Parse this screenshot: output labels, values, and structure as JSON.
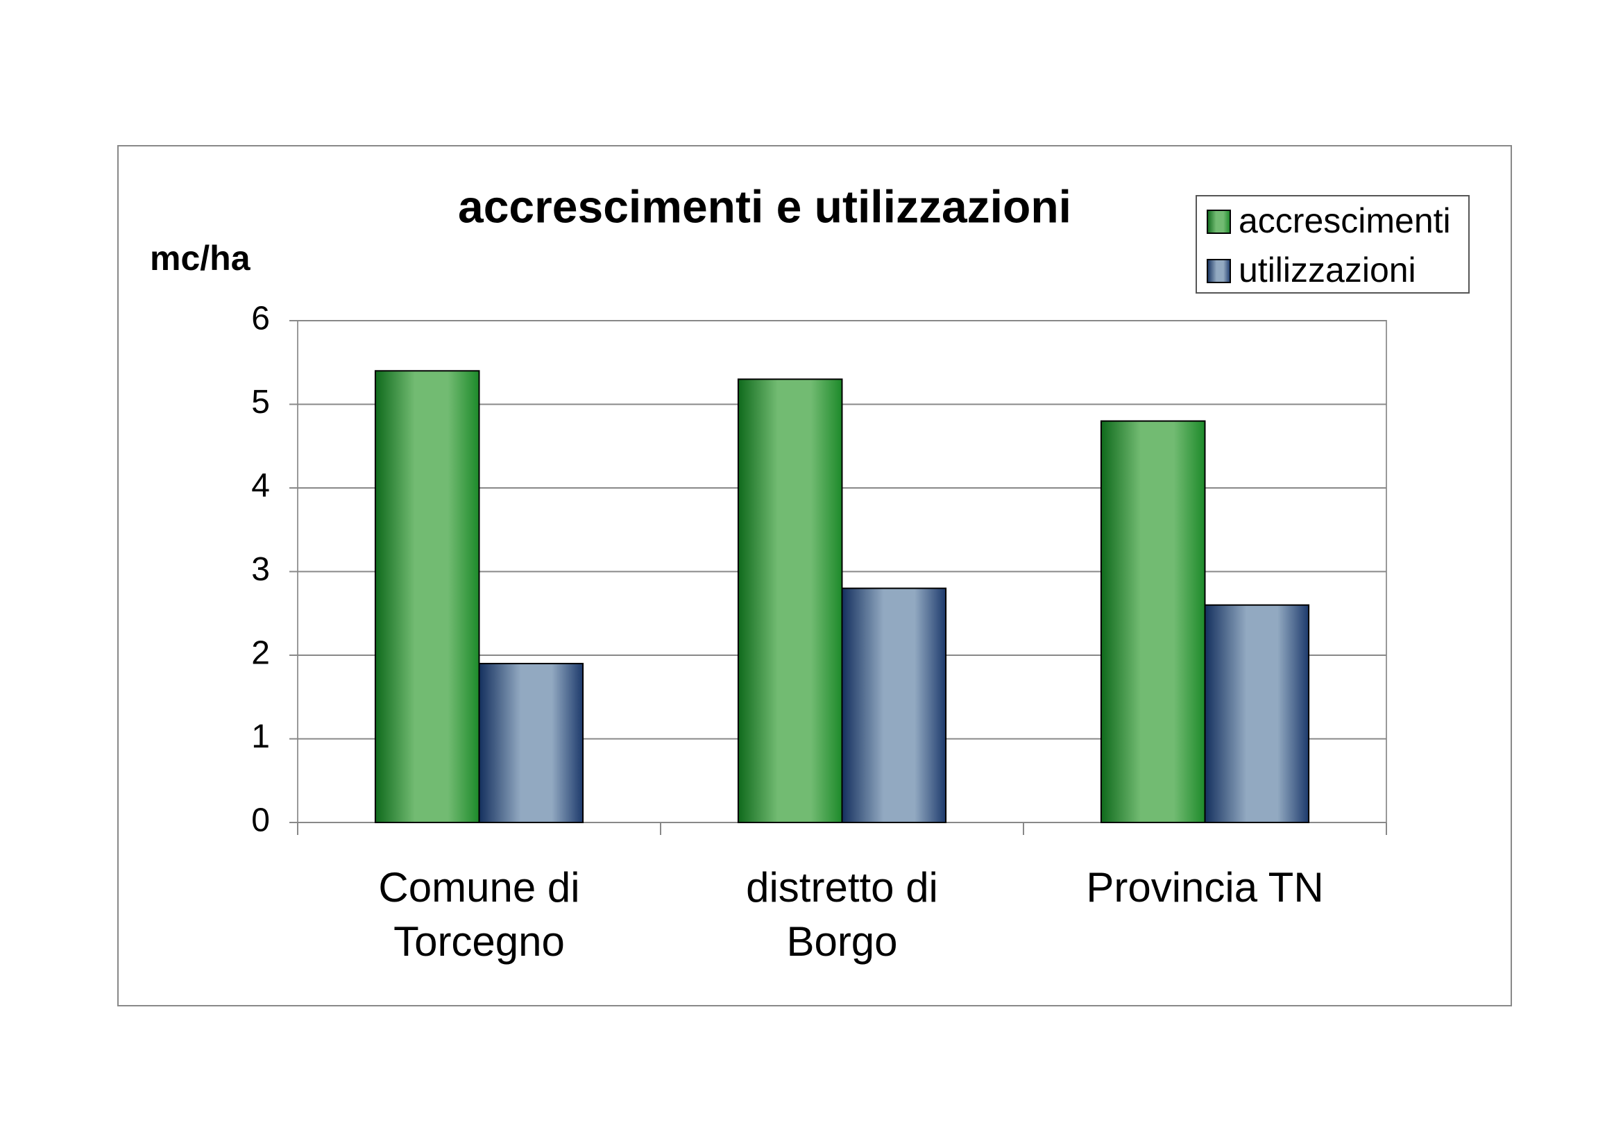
{
  "chart_data": {
    "type": "bar",
    "title": "accrescimenti e utilizzazioni",
    "y_label": "mc/ha",
    "categories": [
      "Comune di Torcegno",
      "distretto di Borgo",
      "Provincia TN"
    ],
    "series": [
      {
        "name": "accrescimenti",
        "color": "#72bb72",
        "values": [
          5.4,
          5.3,
          4.8
        ]
      },
      {
        "name": "utilizzazioni",
        "color": "#92a9c1",
        "values": [
          1.9,
          2.8,
          2.6
        ]
      }
    ],
    "ylim": [
      0,
      6
    ],
    "yticks": [
      0,
      1,
      2,
      3,
      4,
      5,
      6
    ],
    "grid": true,
    "legend": "top-right"
  }
}
